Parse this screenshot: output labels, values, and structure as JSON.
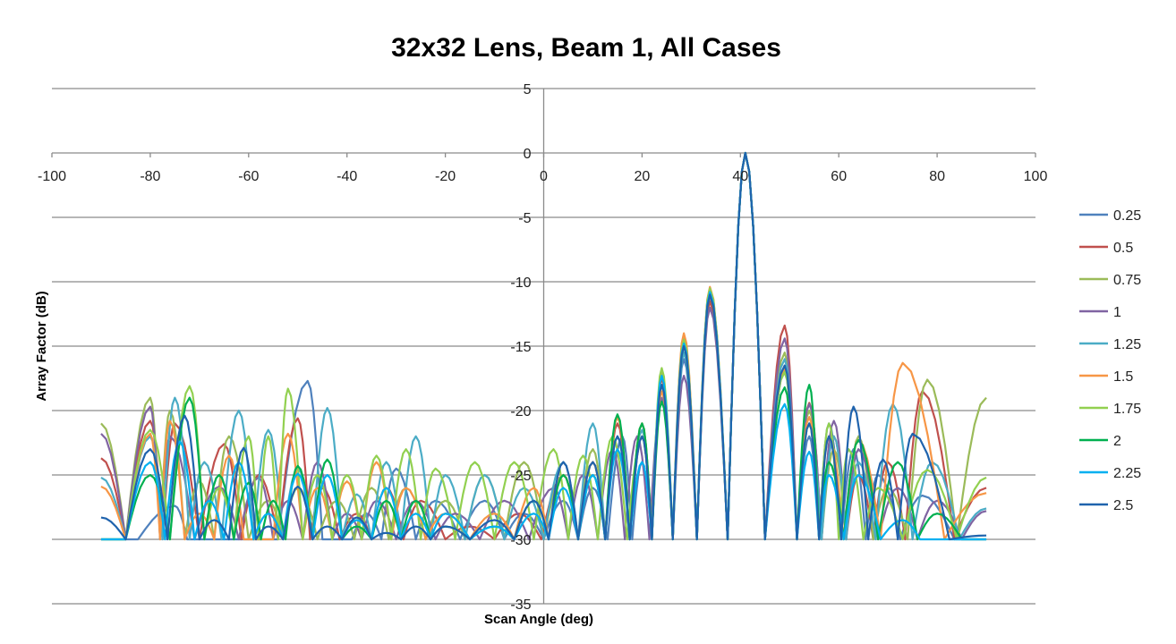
{
  "chart_data": {
    "type": "line",
    "title": "32x32 Lens, Beam 1, All Cases",
    "xlabel": "Scan Angle (deg)",
    "ylabel": "Array Factor (dB)",
    "xlim": [
      -100,
      100
    ],
    "ylim": [
      -35,
      5
    ],
    "x_ticks": [
      -100,
      -80,
      -60,
      -40,
      -20,
      0,
      20,
      40,
      60,
      80,
      100
    ],
    "y_ticks": [
      5,
      0,
      -5,
      -10,
      -15,
      -20,
      -25,
      -30,
      -35
    ],
    "grid": "horizontal",
    "legend": "right",
    "series": [
      {
        "name": "0.25",
        "color": "#4f81bd",
        "floor": -30,
        "lobes": [
          [
            -90,
            -30
          ],
          [
            -75,
            -27.4
          ],
          [
            -70,
            -30
          ],
          [
            -60,
            -30
          ],
          [
            -48,
            -17.7
          ],
          [
            -42,
            -30
          ],
          [
            -36,
            -28
          ],
          [
            -30,
            -24.5
          ],
          [
            -22,
            -27
          ],
          [
            -12,
            -27
          ],
          [
            -4,
            -28
          ],
          [
            4,
            -27
          ],
          [
            10,
            -26
          ],
          [
            16,
            -22
          ],
          [
            20,
            -24
          ],
          [
            24,
            -18
          ],
          [
            28.5,
            -16
          ],
          [
            33.8,
            -11
          ],
          [
            41,
            0
          ],
          [
            49,
            -17
          ],
          [
            54,
            -22
          ],
          [
            58,
            -21
          ],
          [
            63,
            -23
          ],
          [
            68,
            -25
          ],
          [
            77,
            -26.6
          ],
          [
            90,
            -30
          ]
        ]
      },
      {
        "name": "0.5",
        "color": "#c0504d",
        "floor": -30,
        "lobes": [
          [
            -90,
            -23.7
          ],
          [
            -80,
            -20.8
          ],
          [
            -75,
            -21
          ],
          [
            -65,
            -22.6
          ],
          [
            -58,
            -25
          ],
          [
            -50,
            -20.6
          ],
          [
            -45,
            -26
          ],
          [
            -38,
            -28
          ],
          [
            -32,
            -26
          ],
          [
            -25,
            -27
          ],
          [
            -15,
            -29
          ],
          [
            -5,
            -28
          ],
          [
            4,
            -25
          ],
          [
            10,
            -24
          ],
          [
            15,
            -21
          ],
          [
            20,
            -22
          ],
          [
            24,
            -17.5
          ],
          [
            28.5,
            -14.8
          ],
          [
            33.8,
            -11.5
          ],
          [
            41,
            0
          ],
          [
            49,
            -13.4
          ],
          [
            54,
            -19.4
          ],
          [
            59,
            -22
          ],
          [
            64,
            -25
          ],
          [
            70,
            -24
          ],
          [
            77,
            -18.5
          ],
          [
            90,
            -26
          ]
        ]
      },
      {
        "name": "0.75",
        "color": "#9bbb59",
        "floor": -30,
        "lobes": [
          [
            -90,
            -21
          ],
          [
            -80,
            -19
          ],
          [
            -76,
            -20
          ],
          [
            -70,
            -25.5
          ],
          [
            -64,
            -22
          ],
          [
            -56,
            -27
          ],
          [
            -50,
            -26
          ],
          [
            -42,
            -27
          ],
          [
            -35,
            -26
          ],
          [
            -28,
            -26
          ],
          [
            -20,
            -27
          ],
          [
            -12,
            -25
          ],
          [
            -4,
            -24
          ],
          [
            4,
            -25
          ],
          [
            10,
            -23
          ],
          [
            15,
            -22
          ],
          [
            20,
            -21
          ],
          [
            24,
            -17
          ],
          [
            28.5,
            -14.2
          ],
          [
            33.8,
            -10.5
          ],
          [
            41,
            0
          ],
          [
            49,
            -15.5
          ],
          [
            54,
            -20
          ],
          [
            59,
            -23
          ],
          [
            64,
            -22
          ],
          [
            70,
            -26
          ],
          [
            78,
            -17.6
          ],
          [
            90,
            -19
          ]
        ]
      },
      {
        "name": "1",
        "color": "#8064a2",
        "floor": -30,
        "lobes": [
          [
            -90,
            -21.8
          ],
          [
            -80,
            -19.7
          ],
          [
            -76,
            -22
          ],
          [
            -66,
            -25.9
          ],
          [
            -58,
            -25.2
          ],
          [
            -52,
            -27
          ],
          [
            -46,
            -24
          ],
          [
            -40,
            -28
          ],
          [
            -34,
            -27
          ],
          [
            -26,
            -27
          ],
          [
            -18,
            -28
          ],
          [
            -8,
            -27
          ],
          [
            2,
            -26
          ],
          [
            8,
            -25
          ],
          [
            14,
            -23
          ],
          [
            19,
            -22
          ],
          [
            24,
            -19
          ],
          [
            28.5,
            -17.3
          ],
          [
            33.8,
            -12
          ],
          [
            41,
            0
          ],
          [
            49,
            -14.4
          ],
          [
            54,
            -19.5
          ],
          [
            59,
            -20.8
          ],
          [
            64,
            -23
          ],
          [
            72,
            -26
          ],
          [
            80,
            -27
          ],
          [
            90,
            -27.8
          ]
        ]
      },
      {
        "name": "1.25",
        "color": "#4bacc6",
        "floor": -30,
        "lobes": [
          [
            -90,
            -25.2
          ],
          [
            -80,
            -22
          ],
          [
            -75,
            -19
          ],
          [
            -69,
            -24
          ],
          [
            -62,
            -20
          ],
          [
            -56,
            -21.5
          ],
          [
            -50,
            -24.5
          ],
          [
            -44,
            -19.8
          ],
          [
            -38,
            -26.5
          ],
          [
            -32,
            -24
          ],
          [
            -26,
            -22
          ],
          [
            -20,
            -25
          ],
          [
            -12,
            -25
          ],
          [
            -4,
            -26
          ],
          [
            4,
            -24
          ],
          [
            10,
            -21
          ],
          [
            15,
            -22
          ],
          [
            20,
            -21.5
          ],
          [
            24,
            -18
          ],
          [
            28.5,
            -15.5
          ],
          [
            33.8,
            -11
          ],
          [
            41,
            0
          ],
          [
            49,
            -16
          ],
          [
            54,
            -21
          ],
          [
            59,
            -22
          ],
          [
            64,
            -24
          ],
          [
            71,
            -19.5
          ],
          [
            79,
            -24
          ],
          [
            90,
            -27.6
          ]
        ]
      },
      {
        "name": "1.5",
        "color": "#f79646",
        "floor": -30,
        "lobes": [
          [
            -90,
            -25.9
          ],
          [
            -80,
            -21.8
          ],
          [
            -76,
            -20.8
          ],
          [
            -70,
            -28
          ],
          [
            -64,
            -23.5
          ],
          [
            -58,
            -30
          ],
          [
            -52,
            -21.8
          ],
          [
            -46,
            -26
          ],
          [
            -40,
            -25.5
          ],
          [
            -34,
            -24
          ],
          [
            -28,
            -26
          ],
          [
            -20,
            -28
          ],
          [
            -10,
            -28
          ],
          [
            -2,
            -26
          ],
          [
            4,
            -25
          ],
          [
            10,
            -24
          ],
          [
            15,
            -20.5
          ],
          [
            20,
            -21
          ],
          [
            24,
            -18.5
          ],
          [
            28.5,
            -14
          ],
          [
            33.8,
            -10.4
          ],
          [
            41,
            0
          ],
          [
            49,
            -16.8
          ],
          [
            54,
            -20.5
          ],
          [
            58,
            -22
          ],
          [
            64,
            -22.3
          ],
          [
            73,
            -16.3
          ],
          [
            90,
            -26.4
          ]
        ]
      },
      {
        "name": "1.75",
        "color": "#92d050",
        "floor": -30,
        "lobes": [
          [
            -90,
            -30
          ],
          [
            -80,
            -21.5
          ],
          [
            -72,
            -18.1
          ],
          [
            -66,
            -26
          ],
          [
            -60,
            -22
          ],
          [
            -56,
            -22
          ],
          [
            -52,
            -18.3
          ],
          [
            -46,
            -25
          ],
          [
            -40,
            -25
          ],
          [
            -34,
            -23.5
          ],
          [
            -28,
            -23
          ],
          [
            -22,
            -24.5
          ],
          [
            -14,
            -24
          ],
          [
            -6,
            -24
          ],
          [
            2,
            -23
          ],
          [
            8,
            -23.5
          ],
          [
            14,
            -22
          ],
          [
            20,
            -22
          ],
          [
            24,
            -16.7
          ],
          [
            28.5,
            -14.5
          ],
          [
            33.8,
            -10.5
          ],
          [
            41,
            0
          ],
          [
            49,
            -17
          ],
          [
            54,
            -21
          ],
          [
            58,
            -21
          ],
          [
            62,
            -23
          ],
          [
            68,
            -26
          ],
          [
            78,
            -24.6
          ],
          [
            90,
            -25.2
          ]
        ]
      },
      {
        "name": "2",
        "color": "#00b050",
        "floor": -30,
        "lobes": [
          [
            -90,
            -30
          ],
          [
            -80,
            -25
          ],
          [
            -72,
            -19
          ],
          [
            -66,
            -25
          ],
          [
            -60,
            -25.6
          ],
          [
            -55,
            -27
          ],
          [
            -50,
            -24.3
          ],
          [
            -44,
            -23.8
          ],
          [
            -38,
            -29
          ],
          [
            -32,
            -27
          ],
          [
            -26,
            -27
          ],
          [
            -20,
            -29
          ],
          [
            -10,
            -29
          ],
          [
            -2,
            -27
          ],
          [
            4,
            -25
          ],
          [
            10,
            -25
          ],
          [
            15,
            -20.3
          ],
          [
            20,
            -21
          ],
          [
            24,
            -19.3
          ],
          [
            28.5,
            -15
          ],
          [
            33.8,
            -11
          ],
          [
            41,
            0
          ],
          [
            49,
            -18.2
          ],
          [
            54,
            -18
          ],
          [
            58,
            -24
          ],
          [
            64,
            -22.3
          ],
          [
            72,
            -24
          ],
          [
            80,
            -28
          ],
          [
            90,
            -30
          ]
        ]
      },
      {
        "name": "2.25",
        "color": "#00b0f0",
        "floor": -30,
        "lobes": [
          [
            -90,
            -30
          ],
          [
            -80,
            -24
          ],
          [
            -74,
            -22.4
          ],
          [
            -68,
            -27
          ],
          [
            -62,
            -24
          ],
          [
            -56,
            -28
          ],
          [
            -50,
            -24.9
          ],
          [
            -44,
            -25
          ],
          [
            -38,
            -28.5
          ],
          [
            -32,
            -26
          ],
          [
            -26,
            -28
          ],
          [
            -20,
            -28
          ],
          [
            -10,
            -29
          ],
          [
            -2,
            -28
          ],
          [
            4,
            -26
          ],
          [
            10,
            -25
          ],
          [
            15,
            -23
          ],
          [
            20,
            -24
          ],
          [
            24,
            -17.3
          ],
          [
            28.5,
            -14.8
          ],
          [
            33.8,
            -10.8
          ],
          [
            41,
            0
          ],
          [
            49,
            -19.5
          ],
          [
            54,
            -23.2
          ],
          [
            58,
            -25
          ],
          [
            64,
            -25
          ],
          [
            73,
            -28.5
          ],
          [
            80,
            -30
          ],
          [
            90,
            -30
          ]
        ]
      },
      {
        "name": "2.5",
        "color": "#1f63ad",
        "floor": -30,
        "lobes": [
          [
            -90,
            -28.3
          ],
          [
            -80,
            -23
          ],
          [
            -73,
            -20.4
          ],
          [
            -67,
            -28.5
          ],
          [
            -61,
            -22.9
          ],
          [
            -56,
            -29
          ],
          [
            -50,
            -25.9
          ],
          [
            -44,
            -29
          ],
          [
            -38,
            -28.3
          ],
          [
            -32,
            -29.5
          ],
          [
            -26,
            -29
          ],
          [
            -20,
            -29
          ],
          [
            -10,
            -28.5
          ],
          [
            -2,
            -27
          ],
          [
            4,
            -24
          ],
          [
            10,
            -24
          ],
          [
            15,
            -22
          ],
          [
            20,
            -22
          ],
          [
            24,
            -18
          ],
          [
            28.5,
            -15
          ],
          [
            33.8,
            -11
          ],
          [
            41,
            0
          ],
          [
            49,
            -16.5
          ],
          [
            54,
            -21
          ],
          [
            58,
            -22
          ],
          [
            63,
            -19.7
          ],
          [
            69,
            -23.8
          ],
          [
            75,
            -21.8
          ],
          [
            90,
            -29.7
          ]
        ]
      }
    ]
  }
}
